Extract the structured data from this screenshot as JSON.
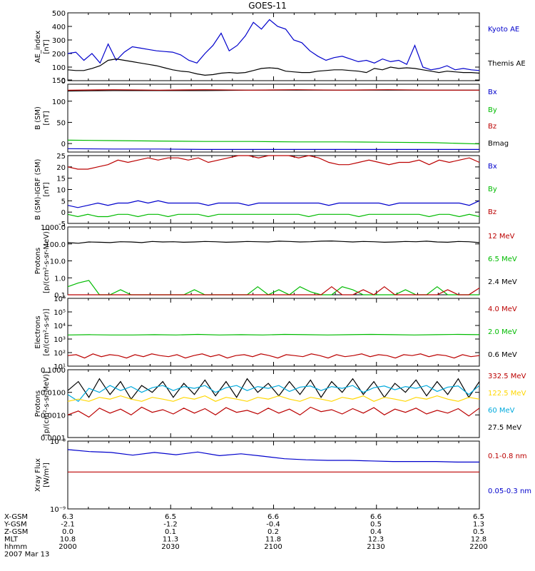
{
  "title": "GOES-11",
  "chart_data": [
    {
      "type": "line",
      "id": "ae",
      "ylabel": [
        "AE_index",
        "[nT]"
      ],
      "ylim": [
        0,
        500
      ],
      "yticks": [
        "500",
        "400",
        "300",
        "200",
        "100",
        "0"
      ],
      "ytickvals": [
        500,
        400,
        300,
        200,
        100,
        0
      ],
      "scale": "linear",
      "legend": [
        {
          "label": "Kyoto AE",
          "color": "#0000cc"
        },
        {
          "label": "Themis AE",
          "color": "#000000"
        }
      ],
      "series": [
        {
          "name": "Kyoto AE",
          "color": "#0000cc",
          "values": [
            200,
            210,
            150,
            200,
            130,
            270,
            150,
            210,
            250,
            240,
            230,
            220,
            215,
            210,
            190,
            150,
            130,
            200,
            260,
            350,
            220,
            260,
            330,
            430,
            380,
            450,
            400,
            380,
            300,
            280,
            220,
            180,
            150,
            170,
            180,
            160,
            140,
            150,
            130,
            160,
            140,
            150,
            120,
            260,
            100,
            80,
            90,
            110,
            80,
            90,
            80,
            75
          ]
        },
        {
          "name": "Themis AE",
          "color": "#000000",
          "values": [
            80,
            75,
            75,
            90,
            110,
            150,
            160,
            150,
            140,
            130,
            120,
            110,
            95,
            80,
            70,
            65,
            50,
            40,
            45,
            55,
            60,
            55,
            60,
            75,
            90,
            95,
            90,
            70,
            65,
            60,
            60,
            70,
            75,
            80,
            80,
            75,
            70,
            60,
            90,
            80,
            100,
            90,
            95,
            90,
            80,
            70,
            60,
            70,
            65,
            60,
            60,
            55
          ]
        }
      ]
    },
    {
      "type": "line",
      "id": "b",
      "ylabel": [
        "B (SM)",
        "[nT]"
      ],
      "ylim": [
        -20,
        140
      ],
      "yticks": [
        "150",
        "100",
        "50",
        "0"
      ],
      "ytickvals": [
        150,
        100,
        50,
        0
      ],
      "scale": "linear",
      "legend": [
        {
          "label": "Bx",
          "color": "#0000cc"
        },
        {
          "label": "By",
          "color": "#00bb00"
        },
        {
          "label": "Bz",
          "color": "#bb0000"
        },
        {
          "label": "Bmag",
          "color": "#000000"
        }
      ],
      "series": [
        {
          "name": "Bmag",
          "color": "#000000",
          "values": [
            124,
            125,
            125,
            125,
            126,
            126,
            126,
            126,
            126,
            126
          ]
        },
        {
          "name": "Bz",
          "color": "#bb0000",
          "values": [
            126,
            127,
            126,
            127,
            126,
            127,
            126,
            127,
            126,
            126
          ]
        },
        {
          "name": "By",
          "color": "#00bb00",
          "values": [
            8,
            7,
            6,
            5,
            5,
            4,
            4,
            3,
            2,
            -1
          ]
        },
        {
          "name": "Bx",
          "color": "#0000cc",
          "values": [
            -12,
            -13,
            -13,
            -14,
            -14,
            -14,
            -14,
            -14,
            -14,
            -14
          ]
        }
      ]
    },
    {
      "type": "line",
      "id": "db",
      "ylabel": [
        "B (SM)-IGRF (SM)",
        "[nT]"
      ],
      "ylim": [
        -5,
        25
      ],
      "yticks": [
        "25",
        "20",
        "15",
        "10",
        "5",
        "0",
        "-5"
      ],
      "ytickvals": [
        25,
        20,
        15,
        10,
        5,
        0,
        -5
      ],
      "scale": "linear",
      "legend": [
        {
          "label": "Bx",
          "color": "#0000cc"
        },
        {
          "label": "By",
          "color": "#00bb00"
        },
        {
          "label": "Bz",
          "color": "#bb0000"
        }
      ],
      "series": [
        {
          "name": "Bz",
          "color": "#bb0000",
          "values": [
            20,
            19,
            19,
            20,
            21,
            23,
            22,
            23,
            24,
            23,
            24,
            24,
            23,
            24,
            22,
            23,
            24,
            25,
            25,
            24,
            25,
            25,
            25,
            24,
            25,
            24,
            22,
            21,
            21,
            22,
            23,
            22,
            21,
            22,
            22,
            23,
            21,
            23,
            22,
            23,
            24,
            22
          ]
        },
        {
          "name": "Bx",
          "color": "#0000cc",
          "values": [
            3,
            2,
            3,
            4,
            3,
            4,
            4,
            5,
            4,
            5,
            4,
            4,
            4,
            4,
            3,
            4,
            4,
            4,
            3,
            4,
            4,
            4,
            4,
            4,
            4,
            4,
            3,
            4,
            4,
            4,
            4,
            4,
            3,
            4,
            4,
            4,
            4,
            4,
            4,
            4,
            3,
            5
          ]
        },
        {
          "name": "By",
          "color": "#00bb00",
          "values": [
            -1,
            -2,
            -1,
            -2,
            -2,
            -1,
            -1,
            -2,
            -1,
            -1,
            -2,
            -1,
            -1,
            -1,
            -2,
            -1,
            -1,
            -1,
            -1,
            -1,
            -1,
            -1,
            -1,
            -1,
            -2,
            -1,
            -1,
            -1,
            -1,
            -2,
            -1,
            -1,
            -1,
            -1,
            -1,
            -1,
            -2,
            -1,
            -1,
            -2,
            -1,
            -2
          ]
        }
      ]
    },
    {
      "type": "line",
      "id": "protons_low",
      "ylabel": [
        "Protons",
        "[p/(cm²-s-sr-MeV)]"
      ],
      "ylim": [
        0.1,
        1000
      ],
      "yticks": [
        "1000.0",
        "100.0",
        "10.0",
        "1.0",
        "0.1"
      ],
      "ytickvals": [
        1000,
        100,
        10,
        1,
        0.1
      ],
      "scale": "log",
      "legend": [
        {
          "label": "12 MeV",
          "color": "#bb0000"
        },
        {
          "label": "6.5 MeV",
          "color": "#00bb00"
        },
        {
          "label": "2.4 MeV",
          "color": "#000000"
        }
      ],
      "series": [
        {
          "name": "2.4 MeV",
          "color": "#000000",
          "values": [
            120,
            110,
            130,
            125,
            120,
            135,
            130,
            120,
            140,
            130,
            135,
            125,
            130,
            140,
            135,
            125,
            130,
            140,
            135,
            130,
            145,
            140,
            130,
            135,
            145,
            150,
            140,
            130,
            140,
            135,
            125,
            130,
            140,
            135,
            145,
            130,
            125,
            140,
            135,
            120
          ]
        },
        {
          "name": "6.5 MeV",
          "color": "#00bb00",
          "values": [
            0.3,
            0.5,
            0.7,
            0.1,
            0.1,
            0.2,
            0.1,
            0.1,
            0.1,
            0.1,
            0.1,
            0.1,
            0.2,
            0.1,
            0.1,
            0.1,
            0.1,
            0.1,
            0.3,
            0.1,
            0.2,
            0.1,
            0.3,
            0.15,
            0.1,
            0.1,
            0.3,
            0.2,
            0.1,
            0.1,
            0.1,
            0.1,
            0.2,
            0.1,
            0.1,
            0.3,
            0.1,
            0.1,
            0.1,
            0.1
          ]
        },
        {
          "name": "12 MeV",
          "color": "#bb0000",
          "values": [
            0.1,
            0.1,
            0.1,
            0.1,
            0.1,
            0.1,
            0.1,
            0.1,
            0.1,
            0.1,
            0.1,
            0.1,
            0.1,
            0.1,
            0.1,
            0.1,
            0.1,
            0.1,
            0.1,
            0.1,
            0.1,
            0.1,
            0.1,
            0.1,
            0.1,
            0.3,
            0.1,
            0.1,
            0.2,
            0.1,
            0.3,
            0.1,
            0.1,
            0.1,
            0.1,
            0.1,
            0.2,
            0.1,
            0.1,
            0.25
          ]
        }
      ]
    },
    {
      "type": "line",
      "id": "electrons",
      "ylabel": [
        "Electrons",
        "[e/(cm²-s-sr)]"
      ],
      "ylim": [
        10,
        1000000
      ],
      "yticks": [
        "10⁶",
        "10⁵",
        "10⁴",
        "10³",
        "10²",
        "10¹"
      ],
      "ytickvals": [
        1000000,
        100000,
        10000,
        1000,
        100,
        10
      ],
      "scale": "log",
      "legend": [
        {
          "label": "4.0 MeV",
          "color": "#bb0000"
        },
        {
          "label": "2.0 MeV",
          "color": "#00bb00"
        },
        {
          "label": "0.6 MeV",
          "color": "#000000"
        }
      ],
      "series": [
        {
          "name": "2.0 MeV",
          "color": "#00bb00",
          "values": [
            2000,
            2100,
            2000,
            2000,
            2100,
            2000,
            2200,
            2000,
            2100,
            2000,
            2200,
            2100,
            2000,
            2100,
            2200,
            2100,
            2000,
            2100,
            2200,
            2100
          ]
        },
        {
          "name": "4.0 MeV",
          "color": "#bb0000",
          "values": [
            60,
            70,
            40,
            80,
            50,
            70,
            60,
            40,
            70,
            50,
            80,
            60,
            50,
            70,
            40,
            60,
            80,
            50,
            70,
            40,
            60,
            70,
            50,
            80,
            60,
            40,
            70,
            60,
            50,
            80,
            60,
            40,
            70,
            50,
            60,
            80,
            50,
            70,
            60,
            40,
            70,
            60,
            80,
            50,
            70,
            60,
            40,
            70,
            50,
            60
          ]
        }
      ]
    },
    {
      "type": "line",
      "id": "protons_high",
      "ylabel": [
        "Protons",
        "[p/(cm²-s-sr-MeV)]"
      ],
      "ylim": [
        0.0001,
        0.1
      ],
      "yticks": [
        "0.1000",
        "0.0100",
        "0.0010",
        "0.0001"
      ],
      "ytickvals": [
        0.1,
        0.01,
        0.001,
        0.0001
      ],
      "scale": "log",
      "legend": [
        {
          "label": "332.5 MeV",
          "color": "#bb0000"
        },
        {
          "label": "122.5 MeV",
          "color": "#ffd700"
        },
        {
          "label": "60 MeV",
          "color": "#00aadd"
        },
        {
          "label": "27.5 MeV",
          "color": "#000000"
        }
      ],
      "series": [
        {
          "name": "27.5 MeV",
          "color": "#000000",
          "values": [
            0.012,
            0.03,
            0.006,
            0.04,
            0.008,
            0.03,
            0.005,
            0.02,
            0.01,
            0.03,
            0.006,
            0.025,
            0.008,
            0.035,
            0.007,
            0.03,
            0.006,
            0.04,
            0.01,
            0.025,
            0.007,
            0.03,
            0.008,
            0.035,
            0.006,
            0.03,
            0.01,
            0.04,
            0.008,
            0.03,
            0.006,
            0.025,
            0.01,
            0.035,
            0.007,
            0.03,
            0.008,
            0.04,
            0.006,
            0.03
          ]
        },
        {
          "name": "60 MeV",
          "color": "#00aadd",
          "values": [
            0.008,
            0.004,
            0.015,
            0.01,
            0.02,
            0.012,
            0.018,
            0.01,
            0.016,
            0.02,
            0.012,
            0.018,
            0.015,
            0.02,
            0.01,
            0.016,
            0.02,
            0.012,
            0.018,
            0.015,
            0.02,
            0.011,
            0.017,
            0.019,
            0.012,
            0.018,
            0.015,
            0.02,
            0.01,
            0.016,
            0.019,
            0.013,
            0.018,
            0.015,
            0.02,
            0.011,
            0.017,
            0.019,
            0.008,
            0.02
          ]
        },
        {
          "name": "122.5 MeV",
          "color": "#ffd700",
          "values": [
            0.004,
            0.005,
            0.004,
            0.006,
            0.005,
            0.007,
            0.005,
            0.004,
            0.006,
            0.005,
            0.004,
            0.006,
            0.005,
            0.007,
            0.004,
            0.006,
            0.005,
            0.004,
            0.006,
            0.005,
            0.007,
            0.005,
            0.004,
            0.006,
            0.005,
            0.004,
            0.006,
            0.005,
            0.007,
            0.004,
            0.006,
            0.005,
            0.004,
            0.006,
            0.005,
            0.007,
            0.005,
            0.004,
            0.006,
            0.005
          ]
        },
        {
          "name": "332.5 MeV",
          "color": "#bb0000",
          "values": [
            0.001,
            0.0015,
            0.0008,
            0.002,
            0.0012,
            0.0018,
            0.001,
            0.0022,
            0.0013,
            0.0017,
            0.0011,
            0.002,
            0.0012,
            0.0019,
            0.001,
            0.0021,
            0.0013,
            0.0016,
            0.0011,
            0.002,
            0.0012,
            0.0018,
            0.001,
            0.0022,
            0.0014,
            0.0017,
            0.0011,
            0.0019,
            0.0012,
            0.0021,
            0.001,
            0.0018,
            0.0013,
            0.002,
            0.0011,
            0.0016,
            0.0012,
            0.0019,
            0.0009,
            0.002
          ]
        }
      ]
    },
    {
      "type": "line",
      "id": "xray",
      "ylabel": [
        "Xray Flux",
        "[W/m²]"
      ],
      "ylim": [
        1e-09,
        1e-08
      ],
      "yticks": [
        "10⁻⁸",
        "10⁻⁹"
      ],
      "ytickvals": [
        1e-08,
        1e-09
      ],
      "scale": "log",
      "legend": [
        {
          "label": "0.1-0.8 nm",
          "color": "#bb0000"
        },
        {
          "label": "0.05-0.3 nm",
          "color": "#0000cc"
        }
      ],
      "series": [
        {
          "name": "0.1-0.8 nm",
          "color": "#bb0000",
          "values": [
            3.5e-09,
            3.5e-09,
            3.5e-09,
            3.5e-09,
            3.5e-09,
            3.5e-09,
            3.5e-09,
            3.5e-09,
            3.5e-09,
            3.5e-09
          ]
        },
        {
          "name": "0.05-0.3 nm",
          "color": "#0000cc",
          "values": [
            7.5e-09,
            7e-09,
            6.8e-09,
            6.2e-09,
            6.8e-09,
            6.3e-09,
            6.9e-09,
            6.1e-09,
            6.5e-09,
            6e-09,
            5.5e-09,
            5.3e-09,
            5.2e-09,
            5.2e-09,
            5.1e-09,
            5e-09,
            5e-09,
            5e-09,
            4.9e-09,
            4.9e-09
          ]
        }
      ]
    }
  ],
  "footer": {
    "rows": [
      {
        "label": "X-GSM",
        "values": [
          "6.3",
          "6.5",
          "6.6",
          "6.6",
          "6.5"
        ]
      },
      {
        "label": "Y-GSM",
        "values": [
          "-2.1",
          "-1.2",
          "-0.4",
          "0.5",
          "1.3"
        ]
      },
      {
        "label": "Z-GSM",
        "values": [
          "0.0",
          "0.1",
          "0.2",
          "0.4",
          "0.5"
        ]
      },
      {
        "label": "MLT",
        "values": [
          "10.8",
          "11.3",
          "11.8",
          "12.3",
          "12.8"
        ]
      },
      {
        "label": "hhmm",
        "values": [
          "2000",
          "2030",
          "2100",
          "2130",
          "2200"
        ]
      }
    ],
    "date": "2007 Mar 13"
  }
}
